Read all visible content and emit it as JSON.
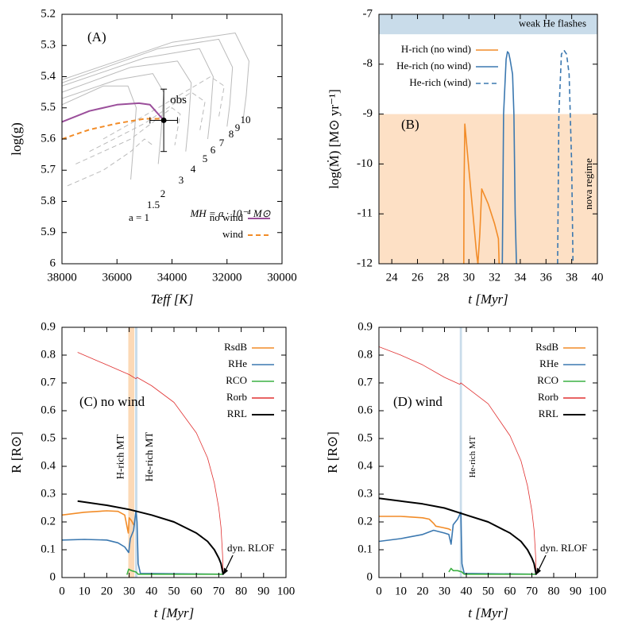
{
  "chart_data": [
    {
      "type": "line",
      "panel_label": "(A)",
      "xlabel": "Teff [K]",
      "ylabel": "log(g)",
      "xlim": [
        38000,
        30000
      ],
      "xticks": [
        38000,
        36000,
        34000,
        32000,
        30000
      ],
      "ylim": [
        6,
        5.2
      ],
      "yticks": [
        5.2,
        5.3,
        5.4,
        5.5,
        5.6,
        5.7,
        5.8,
        5.9,
        6
      ],
      "legend": "lower right",
      "series": [
        {
          "color": "#bbbbbb",
          "x": [
            38000,
            36500,
            35600,
            35300,
            35400,
            35500
          ],
          "values": [
            5.49,
            5.43,
            5.43,
            5.5,
            5.62,
            5.73
          ]
        },
        {
          "color": "#bbbbbb",
          "x": [
            38000,
            36000,
            34700,
            34300,
            34400,
            34500
          ],
          "values": [
            5.47,
            5.41,
            5.39,
            5.45,
            5.58,
            5.68
          ]
        },
        {
          "color": "#bbbbbb",
          "x": [
            38000,
            35500,
            33800,
            33300,
            33400,
            33500
          ],
          "values": [
            5.45,
            5.37,
            5.35,
            5.42,
            5.55,
            5.64
          ]
        },
        {
          "color": "#bbbbbb",
          "x": [
            38000,
            35000,
            33000,
            32500,
            32600,
            32700
          ],
          "values": [
            5.43,
            5.34,
            5.31,
            5.4,
            5.52,
            5.6
          ]
        },
        {
          "color": "#bbbbbb",
          "x": [
            38000,
            34500,
            32300,
            31800,
            31900,
            32000
          ],
          "values": [
            5.42,
            5.31,
            5.28,
            5.37,
            5.49,
            5.56
          ]
        },
        {
          "color": "#bbbbbb",
          "x": [
            38000,
            34000,
            31700,
            31200,
            31300,
            31400
          ],
          "values": [
            5.41,
            5.29,
            5.26,
            5.35,
            5.46,
            5.53
          ]
        },
        {
          "color": "#bbbbbb",
          "dash": true,
          "x": [
            37800,
            36500,
            35500,
            35000,
            34700
          ],
          "values": [
            5.75,
            5.7,
            5.64,
            5.6,
            5.62
          ]
        },
        {
          "color": "#bbbbbb",
          "dash": true,
          "x": [
            37500,
            35500,
            34000,
            33700,
            33900
          ],
          "values": [
            5.68,
            5.6,
            5.5,
            5.52,
            5.62
          ]
        },
        {
          "color": "#bbbbbb",
          "dash": true,
          "x": [
            37000,
            35000,
            33300,
            32800,
            33000
          ],
          "values": [
            5.64,
            5.55,
            5.45,
            5.48,
            5.58
          ]
        },
        {
          "color": "#bbbbbb",
          "dash": true,
          "x": [
            36500,
            34500,
            32600,
            32100,
            32300
          ],
          "values": [
            5.6,
            5.5,
            5.4,
            5.43,
            5.53
          ]
        },
        {
          "name": "no wind",
          "color": "#9b4f9b",
          "width": 2,
          "x": [
            38000,
            37000,
            36000,
            35200,
            34800,
            34300
          ],
          "values": [
            5.545,
            5.51,
            5.49,
            5.485,
            5.49,
            5.54
          ]
        },
        {
          "name": "wind",
          "color": "#f28c28",
          "width": 2,
          "dash": true,
          "x": [
            38000,
            37000,
            36000,
            35000,
            34300
          ],
          "values": [
            5.6,
            5.57,
            5.55,
            5.535,
            5.535
          ]
        }
      ],
      "obs": {
        "label": "obs",
        "x": 34300,
        "y": 5.54,
        "xerr": 500,
        "yerr": 0.1
      },
      "annotations": [
        "a = 1",
        "1.5",
        "2",
        "3",
        "4",
        "5",
        "6",
        "7",
        "8",
        "9",
        "10",
        "MH = a · 10⁻⁴ M⊙"
      ]
    },
    {
      "type": "line",
      "panel_label": "(B)",
      "xlabel": "t [Myr]",
      "ylabel": "log(Ṁ) [M⊙ yr⁻¹]",
      "xlim": [
        23,
        40
      ],
      "xticks": [
        24,
        26,
        28,
        30,
        32,
        34,
        36,
        38,
        40
      ],
      "ylim": [
        -12,
        -7
      ],
      "yticks": [
        -12,
        -11,
        -10,
        -9,
        -8,
        -7
      ],
      "legend": "upper left",
      "bands": [
        {
          "label": "weak He flashes",
          "range": [
            -7.4,
            -7
          ],
          "color": "#c9dcea"
        },
        {
          "label": "nova regime",
          "range": [
            -12,
            -9
          ],
          "color": "#fde0c5"
        }
      ],
      "series": [
        {
          "name": "H-rich (no wind)",
          "color": "#f28c28",
          "width": 1.6,
          "x": [
            29.6,
            29.62,
            29.68,
            30.6,
            30.7,
            30.85,
            31.0,
            31.5,
            32.0,
            32.3,
            32.35
          ],
          "values": [
            -12,
            -10.5,
            -9.2,
            -11.8,
            -12,
            -11.4,
            -10.5,
            -10.8,
            -11.2,
            -11.5,
            -12
          ]
        },
        {
          "name": "He-rich (no wind)",
          "color": "#3b78b0",
          "width": 1.6,
          "x": [
            32.6,
            32.7,
            32.9,
            33.0,
            33.1,
            33.2,
            33.4,
            33.5,
            33.6,
            33.7
          ],
          "values": [
            -12,
            -9,
            -7.9,
            -7.75,
            -7.78,
            -7.9,
            -8.2,
            -9,
            -11,
            -12
          ]
        },
        {
          "name": "He-rich (wind)",
          "color": "#3b78b0",
          "width": 1.6,
          "dash": true,
          "x": [
            36.9,
            37.0,
            37.2,
            37.4,
            37.6,
            37.8,
            38.0,
            38.1
          ],
          "values": [
            -12,
            -9,
            -7.8,
            -7.72,
            -7.8,
            -8.2,
            -10,
            -12
          ]
        }
      ]
    },
    {
      "type": "line",
      "panel_label": "(C) no wind",
      "xlabel": "t [Myr]",
      "ylabel": "R [R⊙]",
      "xlim": [
        0,
        100
      ],
      "xticks": [
        0,
        10,
        20,
        30,
        40,
        50,
        60,
        70,
        80,
        90,
        100
      ],
      "ylim": [
        0,
        0.9
      ],
      "yticks": [
        0,
        0.1,
        0.2,
        0.3,
        0.4,
        0.5,
        0.6,
        0.7,
        0.8,
        0.9
      ],
      "legend": "upper right",
      "spans": [
        {
          "label": "H-rich MT",
          "range": [
            29.6,
            32.3
          ],
          "color": "#fcd9b6"
        },
        {
          "label": "He-rich MT",
          "range": [
            32.6,
            33.7
          ],
          "color": "#c9dcea"
        }
      ],
      "series": [
        {
          "name": "RsdB",
          "color": "#f28c28",
          "width": 1.6,
          "x": [
            0,
            10,
            20,
            25,
            28,
            29.6,
            30,
            31,
            32,
            32.5
          ],
          "values": [
            0.225,
            0.235,
            0.24,
            0.238,
            0.225,
            0.16,
            0.215,
            0.205,
            0.19,
            0.19
          ]
        },
        {
          "name": "RHe",
          "color": "#3b78b0",
          "width": 1.6,
          "x": [
            0,
            10,
            20,
            25,
            28,
            29.8,
            30.5,
            32,
            33,
            33.5,
            34,
            35,
            72
          ],
          "values": [
            0.135,
            0.137,
            0.135,
            0.125,
            0.11,
            0.09,
            0.14,
            0.17,
            0.24,
            0.2,
            0.05,
            0.015,
            0.012
          ]
        },
        {
          "name": "RCO",
          "color": "#3cb043",
          "width": 1.6,
          "x": [
            29,
            29.8,
            31,
            33,
            34,
            72
          ],
          "values": [
            0.01,
            0.03,
            0.025,
            0.02,
            0.012,
            0.012
          ]
        },
        {
          "name": "Rorb",
          "color": "#e03030",
          "width": 0.8,
          "x": [
            7,
            20,
            30,
            33,
            33.5,
            40,
            50,
            60,
            65,
            68,
            70,
            71,
            71.7,
            72
          ],
          "values": [
            0.81,
            0.765,
            0.73,
            0.715,
            0.72,
            0.69,
            0.63,
            0.52,
            0.43,
            0.34,
            0.25,
            0.18,
            0.08,
            0.01
          ]
        },
        {
          "name": "RRL",
          "color": "#000000",
          "width": 2,
          "x": [
            7,
            20,
            30,
            35,
            40,
            50,
            60,
            65,
            68,
            70,
            71,
            72
          ],
          "values": [
            0.275,
            0.26,
            0.245,
            0.235,
            0.225,
            0.2,
            0.16,
            0.13,
            0.1,
            0.07,
            0.05,
            0.01
          ]
        }
      ],
      "annotations": [
        "dyn. RLOF"
      ]
    },
    {
      "type": "line",
      "panel_label": "(D) wind",
      "xlabel": "t [Myr]",
      "ylabel": "R [R⊙]",
      "xlim": [
        0,
        100
      ],
      "xticks": [
        0,
        10,
        20,
        30,
        40,
        50,
        60,
        70,
        80,
        90,
        100
      ],
      "ylim": [
        0,
        0.9
      ],
      "yticks": [
        0,
        0.1,
        0.2,
        0.3,
        0.4,
        0.5,
        0.6,
        0.7,
        0.8,
        0.9
      ],
      "legend": "upper right",
      "spans": [
        {
          "label": "He-rich MT",
          "range": [
            37,
            38
          ],
          "color": "#c9dcea"
        }
      ],
      "series": [
        {
          "name": "RsdB",
          "color": "#f28c28",
          "width": 1.6,
          "x": [
            0,
            10,
            20,
            23,
            25,
            26,
            29,
            32,
            33
          ],
          "values": [
            0.22,
            0.22,
            0.215,
            0.21,
            0.195,
            0.185,
            0.18,
            0.175,
            0.17
          ]
        },
        {
          "name": "RHe",
          "color": "#3b78b0",
          "width": 1.6,
          "x": [
            0,
            10,
            20,
            25,
            30,
            32,
            33,
            34,
            36,
            37.5,
            38,
            39,
            72
          ],
          "values": [
            0.13,
            0.14,
            0.155,
            0.17,
            0.16,
            0.155,
            0.12,
            0.19,
            0.21,
            0.235,
            0.05,
            0.015,
            0.012
          ]
        },
        {
          "name": "RCO",
          "color": "#3cb043",
          "width": 1.6,
          "x": [
            32,
            33,
            34,
            36,
            38,
            39,
            72
          ],
          "values": [
            0.02,
            0.033,
            0.025,
            0.025,
            0.02,
            0.012,
            0.012
          ]
        },
        {
          "name": "Rorb",
          "color": "#e03030",
          "width": 0.8,
          "x": [
            0,
            10,
            20,
            30,
            37,
            37.5,
            40,
            50,
            60,
            65,
            68,
            70,
            71,
            71.7,
            72
          ],
          "values": [
            0.83,
            0.8,
            0.765,
            0.72,
            0.695,
            0.7,
            0.685,
            0.625,
            0.51,
            0.42,
            0.33,
            0.24,
            0.17,
            0.08,
            0.01
          ]
        },
        {
          "name": "RRL",
          "color": "#000000",
          "width": 2,
          "x": [
            0,
            10,
            20,
            30,
            40,
            50,
            60,
            65,
            68,
            70,
            71,
            72
          ],
          "values": [
            0.285,
            0.275,
            0.265,
            0.25,
            0.225,
            0.2,
            0.16,
            0.13,
            0.1,
            0.07,
            0.05,
            0.01
          ]
        }
      ],
      "annotations": [
        "dyn. RLOF"
      ]
    }
  ]
}
